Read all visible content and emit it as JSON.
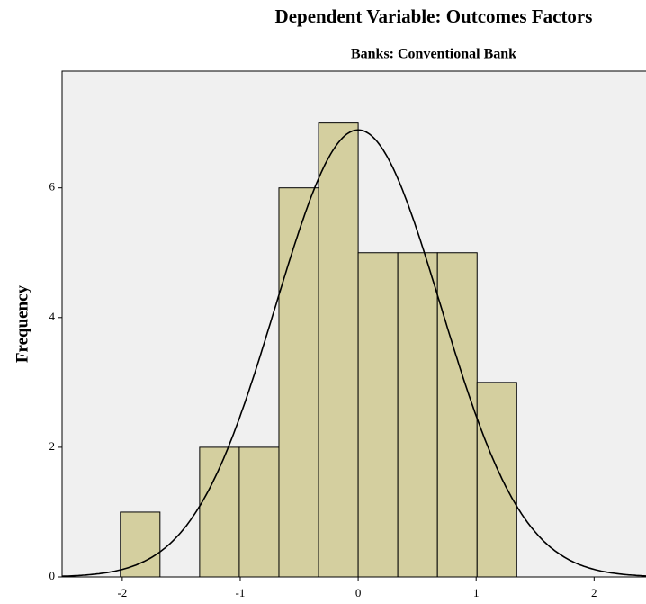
{
  "chart_data": {
    "type": "histogram",
    "title": "Dependent Variable: Outcomes Factors",
    "subtitle": "Banks: Conventional Bank",
    "ylabel": "Frequency",
    "bins": [
      -2.016,
      -1.68,
      -1.344,
      -1.008,
      -0.672,
      -0.336,
      0,
      0.336,
      0.672,
      1.008,
      1.344
    ],
    "values": [
      1,
      0,
      2,
      2,
      6,
      7,
      5,
      5,
      5,
      3
    ],
    "color": "#d4cf9f",
    "curve": {
      "mean": 0,
      "std": 0.7
    },
    "xlim": [
      -2.51,
      2.44
    ],
    "xticks": [
      -2,
      -1,
      0,
      1,
      2
    ],
    "ylim": [
      0,
      7.8
    ],
    "yticks": [
      0,
      2,
      4,
      6
    ]
  }
}
